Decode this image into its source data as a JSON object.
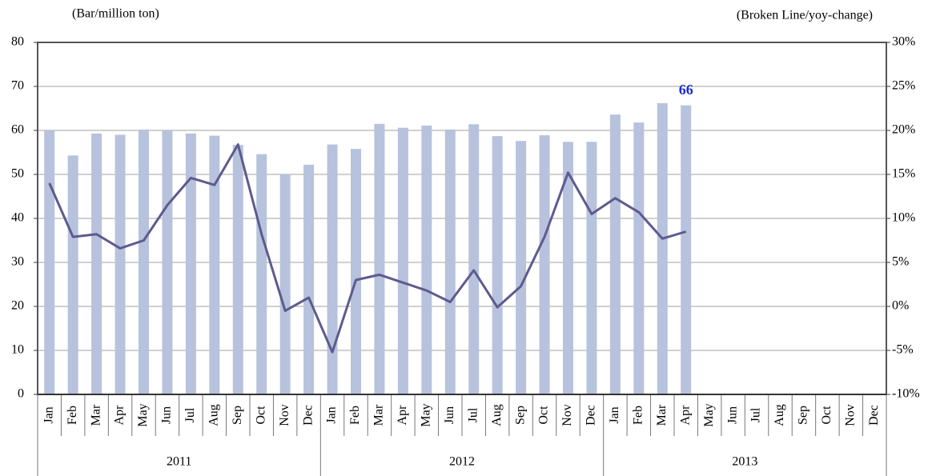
{
  "chart_data": {
    "type": "bar",
    "y_label": "(Bar/million ton)",
    "y2_label": "(Broken Line/yoy-change)",
    "categories": [
      "Jan",
      "Feb",
      "Mar",
      "Apr",
      "May",
      "Jun",
      "Jul",
      "Aug",
      "Sep",
      "Oct",
      "Nov",
      "Dec",
      "Jan",
      "Feb",
      "Mar",
      "Apr",
      "May",
      "Jun",
      "Jul",
      "Aug",
      "Sep",
      "Oct",
      "Nov",
      "Dec",
      "Jan",
      "Feb",
      "Mar",
      "Apr",
      "May",
      "Jun",
      "Jul",
      "Aug",
      "Sep",
      "Oct",
      "Nov",
      "Dec"
    ],
    "year_groups": [
      "2011",
      "2012",
      "2013"
    ],
    "ylim": [
      0,
      80
    ],
    "yticks": [
      0,
      10,
      20,
      30,
      40,
      50,
      60,
      70,
      80
    ],
    "y2lim": [
      -10,
      30
    ],
    "y2ticks": [
      {
        "value": -10,
        "label": "-10%"
      },
      {
        "value": -5,
        "label": "-5%"
      },
      {
        "value": 0,
        "label": "0%"
      },
      {
        "value": 5,
        "label": "5%"
      },
      {
        "value": 10,
        "label": "10%"
      },
      {
        "value": 15,
        "label": "15%"
      },
      {
        "value": 20,
        "label": "20%"
      },
      {
        "value": 25,
        "label": "25%"
      },
      {
        "value": 30,
        "label": "30%"
      }
    ],
    "grid": true,
    "series": [
      {
        "type": "bar",
        "color": "#b7c2dd",
        "label_color": "#1a2fd6",
        "values": [
          60,
          54.3,
          59.3,
          59,
          60.2,
          60,
          59.3,
          58.8,
          56.7,
          54.6,
          50,
          52.2,
          56.8,
          55.8,
          61.5,
          60.6,
          61.1,
          60.2,
          61.4,
          58.7,
          57.6,
          58.9,
          57.4,
          57.4,
          63.6,
          61.8,
          66.2,
          65.7,
          null,
          null,
          null,
          null,
          null,
          null,
          null,
          null
        ],
        "value_labels": [
          null,
          null,
          null,
          null,
          null,
          null,
          null,
          null,
          null,
          null,
          null,
          null,
          null,
          null,
          null,
          null,
          null,
          null,
          null,
          null,
          null,
          null,
          null,
          null,
          null,
          null,
          null,
          "66",
          null,
          null,
          null,
          null,
          null,
          null,
          null,
          null
        ]
      },
      {
        "type": "line",
        "axis": "y2",
        "color": "#5d5b8e",
        "values": [
          14,
          7.9,
          8.2,
          6.6,
          7.5,
          11.5,
          14.6,
          13.8,
          18.4,
          8.2,
          -0.5,
          1.0,
          -5.2,
          3.0,
          3.6,
          2.7,
          1.8,
          0.5,
          4.1,
          -0.1,
          2.3,
          7.9,
          15.2,
          10.5,
          12.3,
          10.7,
          7.7,
          8.5,
          null,
          null,
          null,
          null,
          null,
          null,
          null,
          null
        ]
      }
    ]
  }
}
